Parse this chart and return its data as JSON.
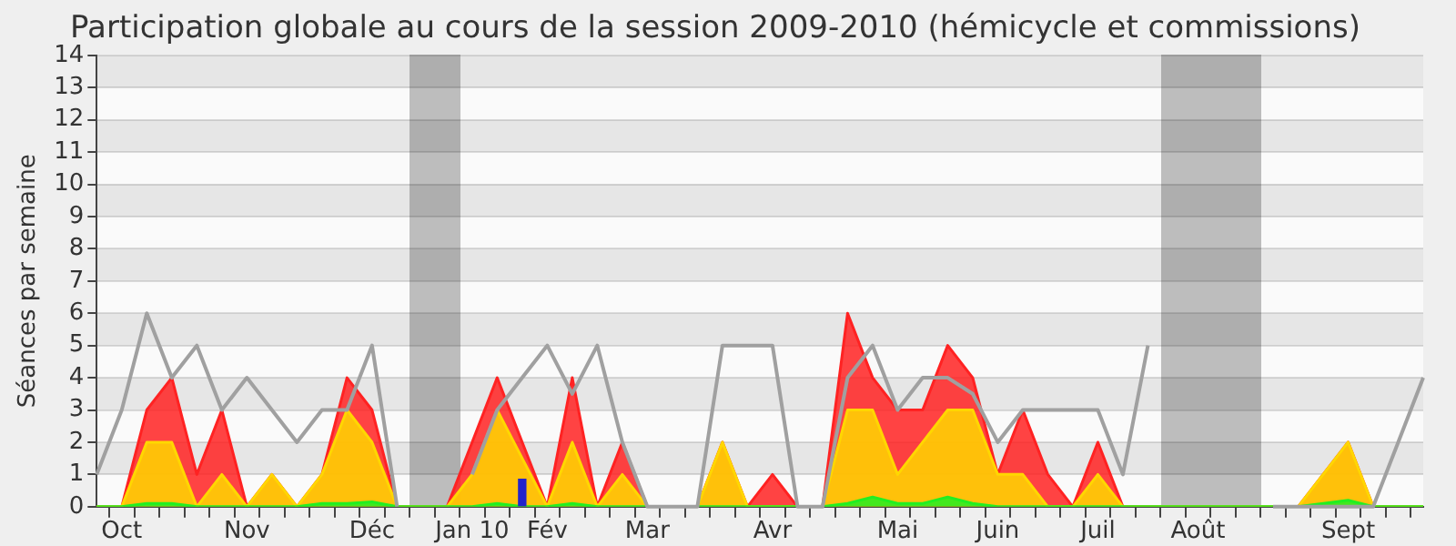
{
  "chart_data": {
    "type": "area",
    "title": "Participation globale au cours de la session 2009-2010 (hémicycle et commissions)",
    "ylabel": "Séances par semaine",
    "categories": [
      null,
      "Oct",
      null,
      null,
      null,
      null,
      "Nov",
      null,
      null,
      null,
      null,
      "Déc",
      null,
      null,
      null,
      "Jan 10",
      null,
      null,
      "Fév",
      null,
      null,
      null,
      "Mar",
      null,
      null,
      null,
      null,
      "Avr",
      null,
      null,
      null,
      null,
      "Mai",
      null,
      null,
      null,
      "Juin",
      null,
      null,
      null,
      "Juil",
      null,
      null,
      null,
      "Août",
      null,
      null,
      null,
      null,
      null,
      "Sept",
      null,
      null,
      null
    ],
    "ylim": [
      0,
      14
    ],
    "yticks": [
      0,
      1,
      2,
      3,
      4,
      5,
      6,
      7,
      8,
      9,
      10,
      11,
      12,
      13,
      14
    ],
    "grid": "y",
    "legend": false,
    "marker": "none",
    "series": [
      {
        "type": "bar",
        "color": "#2222cc",
        "values": [
          null,
          null,
          null,
          null,
          null,
          null,
          null,
          null,
          null,
          null,
          null,
          null,
          null,
          null,
          null,
          null,
          null,
          0.85,
          null,
          null,
          null,
          null,
          null,
          null,
          null,
          null,
          null,
          null,
          null,
          null,
          null,
          null,
          null,
          null,
          null,
          null,
          null,
          null,
          null,
          null,
          null,
          null,
          null,
          null,
          null,
          null,
          null,
          null,
          null,
          null,
          null,
          null,
          null,
          null
        ]
      },
      {
        "type": "line",
        "color": "#a0a0a0",
        "values": [
          1,
          3,
          6,
          4,
          5,
          3,
          4,
          3,
          2,
          3,
          3,
          5,
          0,
          null,
          null,
          1,
          3,
          4,
          5,
          3.5,
          5,
          2,
          0,
          0,
          0,
          5,
          5,
          5,
          0,
          0,
          4,
          5,
          3,
          4,
          4,
          3.5,
          2,
          3,
          3,
          3,
          3,
          1,
          5,
          null,
          null,
          null,
          null,
          0,
          0,
          0,
          0,
          0,
          2,
          4
        ]
      },
      {
        "color": "#22ee22",
        "values": [
          0,
          0,
          0.1,
          0.1,
          0,
          0,
          0,
          0,
          0,
          0.1,
          0.1,
          0.15,
          0,
          0,
          0,
          0,
          0.1,
          0,
          0,
          0.1,
          0,
          0,
          0,
          0,
          0,
          0,
          0,
          0,
          0,
          0,
          0.1,
          0.3,
          0.1,
          0.1,
          0.3,
          0.1,
          0,
          0,
          0,
          0,
          0,
          0,
          0,
          0,
          0,
          0,
          0,
          0,
          0,
          0.1,
          0.2,
          0,
          0,
          0
        ]
      },
      {
        "color": "#ffd700",
        "values": [
          0,
          0,
          2,
          2,
          0,
          1,
          0,
          1,
          0,
          1,
          3,
          2,
          0,
          0,
          0,
          1,
          3,
          1.5,
          0,
          2,
          0,
          1,
          0,
          0,
          0,
          2,
          0,
          0,
          0,
          0,
          3,
          3,
          1,
          2,
          3,
          3,
          1,
          1,
          0,
          0,
          1,
          0,
          0,
          0,
          0,
          0,
          0,
          0,
          0,
          1,
          2,
          0,
          0,
          0
        ]
      },
      {
        "color": "#ff2222",
        "values": [
          0,
          0,
          3,
          4,
          1,
          3,
          0,
          1,
          0,
          1,
          4,
          3,
          0,
          0,
          0,
          2,
          4,
          2,
          0,
          4,
          0,
          2,
          0,
          0,
          0,
          2,
          0,
          1,
          0,
          0,
          6,
          4,
          3,
          3,
          5,
          4,
          1,
          3,
          1,
          0,
          2,
          0,
          0,
          0,
          0,
          0,
          0,
          0,
          0,
          1,
          2,
          0,
          0,
          0
        ]
      }
    ]
  }
}
